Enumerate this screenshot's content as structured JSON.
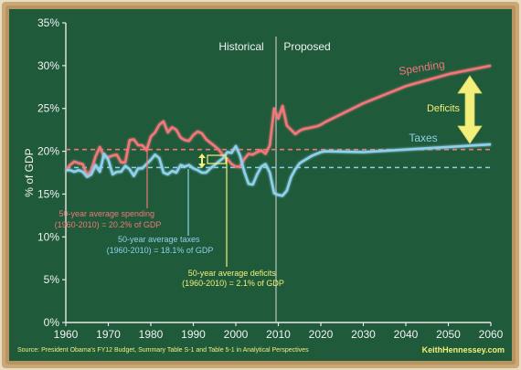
{
  "chart_data": {
    "type": "line",
    "ylabel": "% of GDP",
    "xlim": [
      1960,
      2060
    ],
    "ylim": [
      0,
      35
    ],
    "x_ticks": [
      "1960",
      "1970",
      "1980",
      "1990",
      "2000",
      "2010",
      "2020",
      "2030",
      "2040",
      "2050",
      "2060"
    ],
    "y_ticks": [
      "0%",
      "5%",
      "10%",
      "15%",
      "20%",
      "25%",
      "30%",
      "35%"
    ],
    "grid": false,
    "period_labels": {
      "historical": "Historical",
      "proposed": "Proposed",
      "divider_x": 2010
    },
    "series": [
      {
        "name": "Spending",
        "color": "#f0777a",
        "x": [
          1960,
          1961,
          1962,
          1963,
          1964,
          1965,
          1966,
          1967,
          1968,
          1969,
          1970,
          1971,
          1972,
          1973,
          1974,
          1975,
          1976,
          1977,
          1978,
          1979,
          1980,
          1981,
          1982,
          1983,
          1984,
          1985,
          1986,
          1987,
          1988,
          1989,
          1990,
          1991,
          1992,
          1993,
          1994,
          1995,
          1996,
          1997,
          1998,
          1999,
          2000,
          2001,
          2002,
          2003,
          2004,
          2005,
          2006,
          2007,
          2008,
          2009,
          2010,
          2011,
          2012,
          2013,
          2014,
          2015,
          2016,
          2017,
          2018,
          2019,
          2020,
          2021,
          2030,
          2040,
          2050,
          2060
        ],
        "values": [
          17.8,
          18.4,
          18.8,
          18.6,
          18.5,
          17.2,
          17.8,
          19.4,
          20.5,
          19.4,
          19.3,
          19.5,
          19.6,
          18.7,
          18.7,
          21.3,
          21.4,
          20.7,
          20.7,
          20.1,
          21.7,
          22.2,
          23.1,
          23.5,
          22.2,
          22.8,
          22.5,
          21.6,
          21.3,
          21.2,
          21.9,
          22.3,
          22.1,
          21.4,
          21.0,
          20.6,
          20.2,
          19.5,
          19.1,
          18.5,
          18.2,
          18.2,
          19.1,
          19.7,
          19.6,
          19.9,
          20.1,
          19.7,
          20.7,
          25.0,
          23.8,
          25.3,
          23.0,
          22.5,
          22.0,
          22.4,
          22.6,
          22.7,
          22.8,
          22.9,
          23.1,
          23.4,
          25.6,
          27.6,
          29.0,
          30.0
        ]
      },
      {
        "name": "Taxes",
        "color": "#8fd0ec",
        "x": [
          1960,
          1961,
          1962,
          1963,
          1964,
          1965,
          1966,
          1967,
          1968,
          1969,
          1970,
          1971,
          1972,
          1973,
          1974,
          1975,
          1976,
          1977,
          1978,
          1979,
          1980,
          1981,
          1982,
          1983,
          1984,
          1985,
          1986,
          1987,
          1988,
          1989,
          1990,
          1991,
          1992,
          1993,
          1994,
          1995,
          1996,
          1997,
          1998,
          1999,
          2000,
          2001,
          2002,
          2003,
          2004,
          2005,
          2006,
          2007,
          2008,
          2009,
          2010,
          2011,
          2012,
          2013,
          2014,
          2015,
          2016,
          2017,
          2018,
          2019,
          2020,
          2021,
          2030,
          2040,
          2050,
          2060
        ],
        "values": [
          17.8,
          17.8,
          17.6,
          17.8,
          17.6,
          17.0,
          17.3,
          18.4,
          17.6,
          19.7,
          19.0,
          17.3,
          17.6,
          17.6,
          18.3,
          17.9,
          17.1,
          18.0,
          18.0,
          18.5,
          19.0,
          19.6,
          19.2,
          17.5,
          17.3,
          17.7,
          17.5,
          18.4,
          18.2,
          18.4,
          18.0,
          17.8,
          17.5,
          17.5,
          18.0,
          18.4,
          18.8,
          19.2,
          19.9,
          19.8,
          20.6,
          19.5,
          17.6,
          16.2,
          16.1,
          17.3,
          18.2,
          18.5,
          17.5,
          15.1,
          14.9,
          14.8,
          15.4,
          17.0,
          17.9,
          18.6,
          18.9,
          19.2,
          19.5,
          19.7,
          19.9,
          20.0,
          19.9,
          20.2,
          20.5,
          20.8
        ]
      }
    ],
    "averages": [
      {
        "name": "50-year average spending",
        "value": 20.2,
        "color": "#f0777a"
      },
      {
        "name": "50-year average taxes",
        "value": 18.1,
        "color": "#8fd0ec"
      }
    ],
    "annotations": [
      {
        "id": "spending_avg",
        "lines": [
          "50-year average spending",
          "(1960-2010) = 20.2% of GDP"
        ],
        "color": "#f0777a"
      },
      {
        "id": "taxes_avg",
        "lines": [
          "50-year average taxes",
          "(1960-2010) = 18.1% of GDP"
        ],
        "color": "#8fd0ec"
      },
      {
        "id": "deficits_avg",
        "lines": [
          "50-year average deficits",
          "(1960-2010) = 2.1% of GDP"
        ],
        "color": "#f2f07a"
      }
    ],
    "series_labels": {
      "spending": "Spending",
      "taxes": "Taxes",
      "deficits": "Deficits"
    }
  },
  "footer": {
    "source": "Source: President Obama's FY12 Budget, Summary Table S-1 and Table 5-1 in Analytical Perspectives",
    "credit": "KeithHennessey.com"
  },
  "colors": {
    "board": "#1f5a3a",
    "frame": "#c9a776",
    "spending": "#f0777a",
    "taxes": "#8fd0ec",
    "deficits": "#f2f07a",
    "axis": "#e8e8e8"
  }
}
